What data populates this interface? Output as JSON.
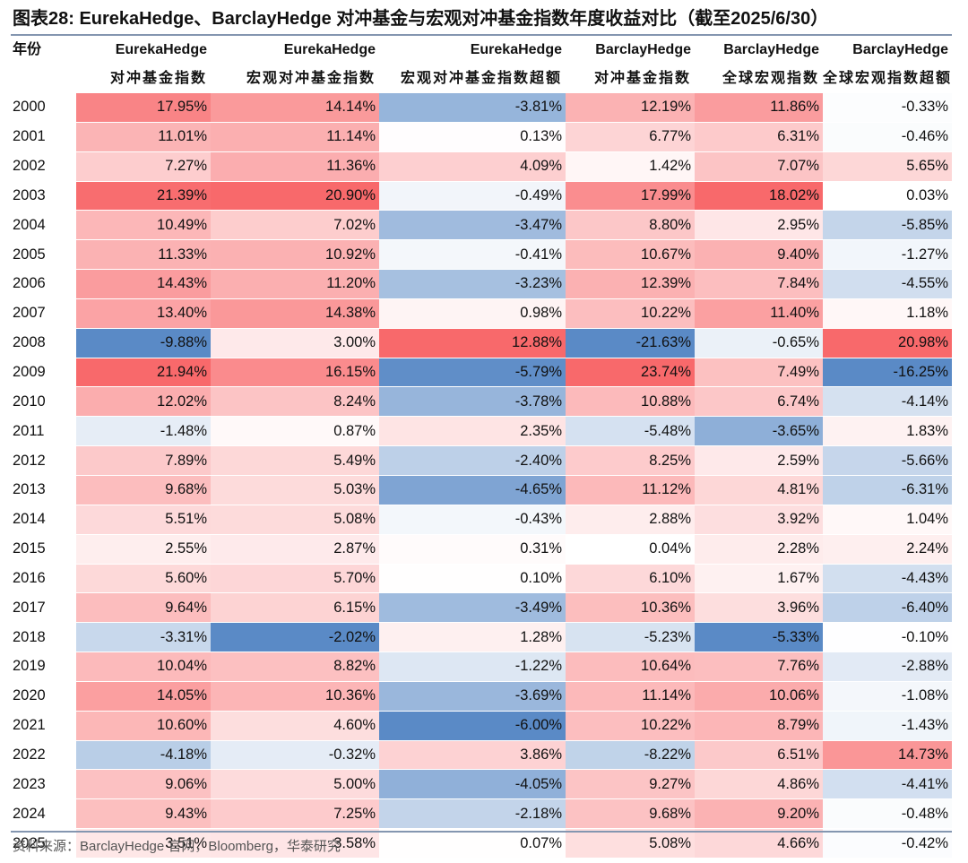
{
  "title": "图表28:   EurekaHedge、BarclayHedge 对冲基金与宏观对冲基金指数年度收益对比（截至2025/6/30）",
  "source": "资料来源：BarclayHedge 官网，Bloomberg，华泰研究",
  "chart_data": {
    "type": "table",
    "header_row1": [
      "年份",
      "EurekaHedge",
      "EurekaHedge",
      "EurekaHedge",
      "BarclayHedge",
      "BarclayHedge",
      "BarclayHedge"
    ],
    "header_row2": [
      "",
      "对冲基金指数",
      "宏观对冲基金指数",
      "宏观对冲基金指数超额",
      "对冲基金指数",
      "全球宏观指数",
      "全球宏观指数超额"
    ],
    "unit": "%",
    "rows": [
      {
        "year": "2000",
        "values": [
          17.95,
          14.14,
          -3.81,
          12.19,
          11.86,
          -0.33
        ]
      },
      {
        "year": "2001",
        "values": [
          11.01,
          11.14,
          0.13,
          6.77,
          6.31,
          -0.46
        ]
      },
      {
        "year": "2002",
        "values": [
          7.27,
          11.36,
          4.09,
          1.42,
          7.07,
          5.65
        ]
      },
      {
        "year": "2003",
        "values": [
          21.39,
          20.9,
          -0.49,
          17.99,
          18.02,
          0.03
        ]
      },
      {
        "year": "2004",
        "values": [
          10.49,
          7.02,
          -3.47,
          8.8,
          2.95,
          -5.85
        ]
      },
      {
        "year": "2005",
        "values": [
          11.33,
          10.92,
          -0.41,
          10.67,
          9.4,
          -1.27
        ]
      },
      {
        "year": "2006",
        "values": [
          14.43,
          11.2,
          -3.23,
          12.39,
          7.84,
          -4.55
        ]
      },
      {
        "year": "2007",
        "values": [
          13.4,
          14.38,
          0.98,
          10.22,
          11.4,
          1.18
        ]
      },
      {
        "year": "2008",
        "values": [
          -9.88,
          3.0,
          12.88,
          -21.63,
          -0.65,
          20.98
        ]
      },
      {
        "year": "2009",
        "values": [
          21.94,
          16.15,
          -5.79,
          23.74,
          7.49,
          -16.25
        ]
      },
      {
        "year": "2010",
        "values": [
          12.02,
          8.24,
          -3.78,
          10.88,
          6.74,
          -4.14
        ]
      },
      {
        "year": "2011",
        "values": [
          -1.48,
          0.87,
          2.35,
          -5.48,
          -3.65,
          1.83
        ]
      },
      {
        "year": "2012",
        "values": [
          7.89,
          5.49,
          -2.4,
          8.25,
          2.59,
          -5.66
        ]
      },
      {
        "year": "2013",
        "values": [
          9.68,
          5.03,
          -4.65,
          11.12,
          4.81,
          -6.31
        ]
      },
      {
        "year": "2014",
        "values": [
          5.51,
          5.08,
          -0.43,
          2.88,
          3.92,
          1.04
        ]
      },
      {
        "year": "2015",
        "values": [
          2.55,
          2.87,
          0.31,
          0.04,
          2.28,
          2.24
        ]
      },
      {
        "year": "2016",
        "values": [
          5.6,
          5.7,
          0.1,
          6.1,
          1.67,
          -4.43
        ]
      },
      {
        "year": "2017",
        "values": [
          9.64,
          6.15,
          -3.49,
          10.36,
          3.96,
          -6.4
        ]
      },
      {
        "year": "2018",
        "values": [
          -3.31,
          -2.02,
          1.28,
          -5.23,
          -5.33,
          -0.1
        ]
      },
      {
        "year": "2019",
        "values": [
          10.04,
          8.82,
          -1.22,
          10.64,
          7.76,
          -2.88
        ]
      },
      {
        "year": "2020",
        "values": [
          14.05,
          10.36,
          -3.69,
          11.14,
          10.06,
          -1.08
        ]
      },
      {
        "year": "2021",
        "values": [
          10.6,
          4.6,
          -6.0,
          10.22,
          8.79,
          -1.43
        ]
      },
      {
        "year": "2022",
        "values": [
          -4.18,
          -0.32,
          3.86,
          -8.22,
          6.51,
          14.73
        ]
      },
      {
        "year": "2023",
        "values": [
          9.06,
          5.0,
          -4.05,
          9.27,
          4.86,
          -4.41
        ]
      },
      {
        "year": "2024",
        "values": [
          9.43,
          7.25,
          -2.18,
          9.68,
          9.2,
          -0.48
        ]
      },
      {
        "year": "2025",
        "values": [
          3.51,
          3.58,
          0.07,
          5.08,
          4.66,
          -0.42
        ]
      }
    ],
    "color_scale": {
      "negative": "#5a8ac6",
      "zero": "#ffffff",
      "positive": "#f8696b"
    }
  }
}
